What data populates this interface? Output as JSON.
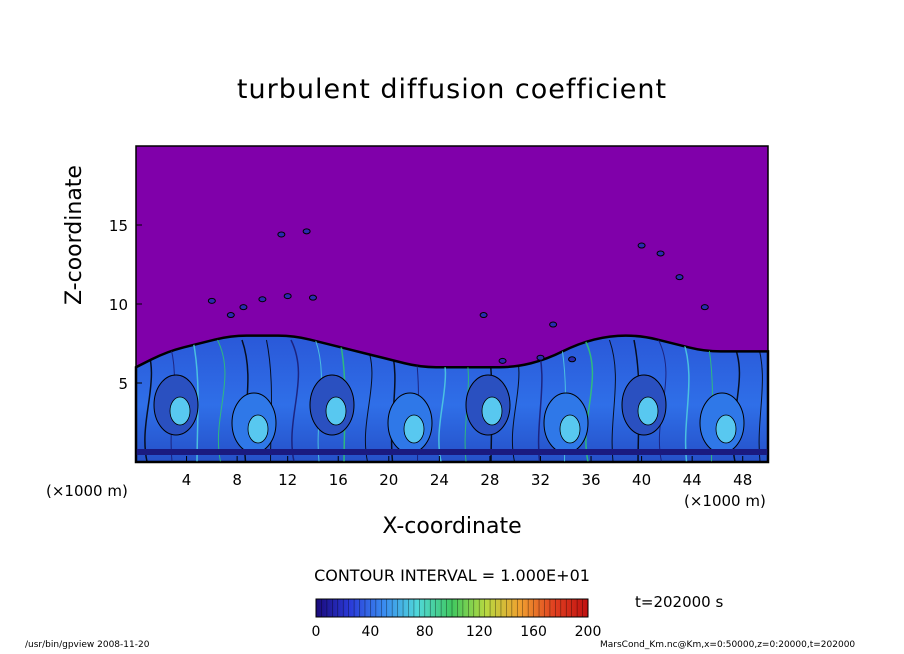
{
  "chart_data": {
    "type": "heatmap",
    "title": "turbulent diffusion coefficient",
    "xlabel": "X-coordinate",
    "ylabel": "Z-coordinate",
    "x_unit": "(×1000 m)",
    "y_unit": "(×1000 m)",
    "xlim": [
      0,
      50
    ],
    "ylim": [
      0,
      20
    ],
    "x_ticks": [
      "4",
      "8",
      "12",
      "16",
      "20",
      "24",
      "28",
      "32",
      "36",
      "40",
      "44",
      "48"
    ],
    "y_ticks": [
      "5",
      "10",
      "15"
    ],
    "colorbar": {
      "min": 0,
      "max": 200,
      "ticks": [
        "0",
        "40",
        "80",
        "120",
        "160",
        "200"
      ],
      "colors": [
        "#1a0a7a",
        "#2a3ad8",
        "#3a8cf0",
        "#50d8d8",
        "#40c860",
        "#b8d840",
        "#f0a030",
        "#e04020",
        "#c01010"
      ]
    },
    "background_color": "#8000aa",
    "contour_interval": "CONTOUR INTERVAL = 1.000E+01",
    "time_label": "t=202000 s",
    "turbulent_layer_top_km": [
      6,
      7,
      7.5,
      8,
      8,
      8,
      7.5,
      7,
      6.5,
      6,
      6,
      6,
      6,
      6.5,
      7.5,
      8,
      8,
      7.5,
      7,
      7,
      7
    ]
  },
  "footer": {
    "left": "/usr/bin/gpview   2008-11-20",
    "right": "MarsCond_Km.nc@Km,x=0:50000,z=0:20000,t=202000"
  }
}
